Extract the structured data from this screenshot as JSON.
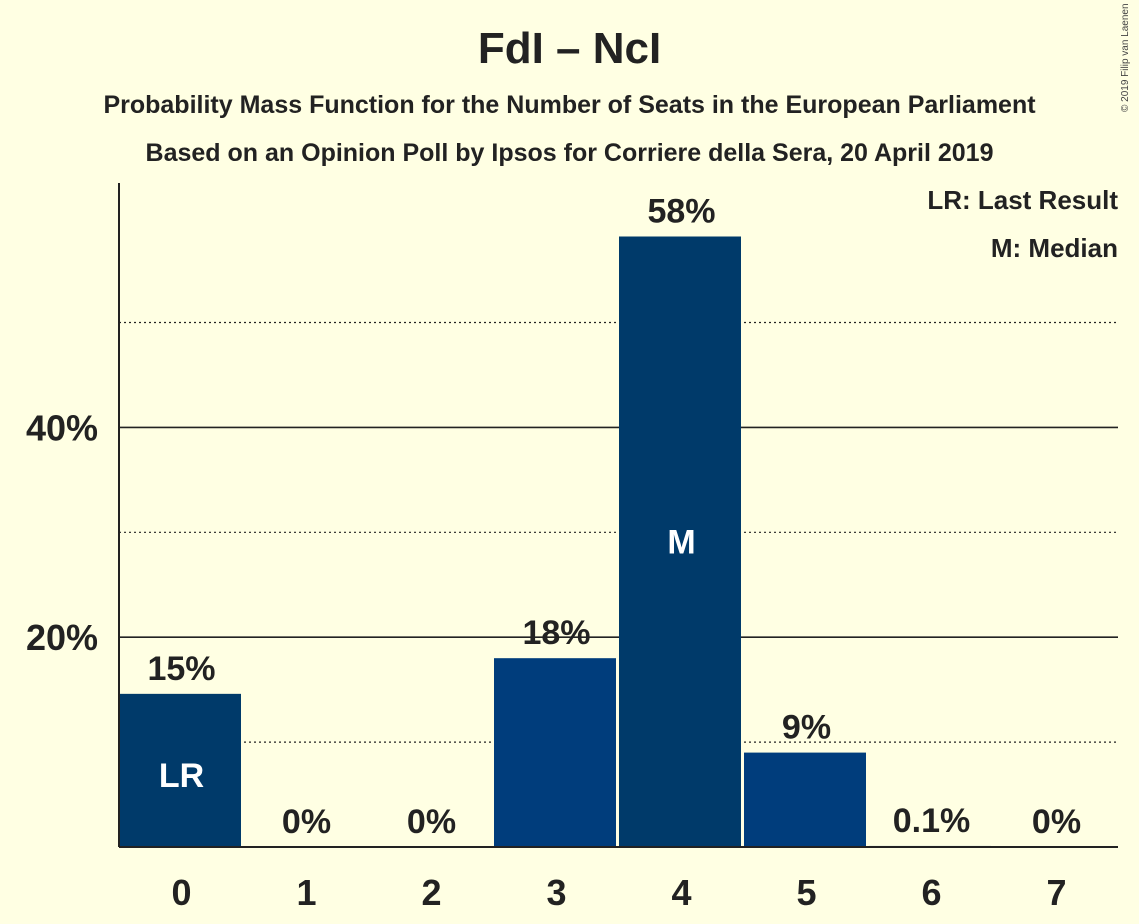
{
  "title": "FdI – NcI",
  "subtitle1": "Probability Mass Function for the Number of Seats in the European Parliament",
  "subtitle2": "Based on an Opinion Poll by Ipsos for Corriere della Sera, 20 April 2019",
  "legend": {
    "last_result": "LR: Last Result",
    "median": "M: Median"
  },
  "copyright": "© 2019 Filip van Laenen",
  "colors": {
    "background": "#ffffe3",
    "bar_dark": "#003a6a",
    "bar_light": "#003d7c",
    "text": "#222222",
    "bar_label": "#ffffff"
  },
  "chart_data": {
    "type": "bar",
    "categories": [
      "0",
      "1",
      "2",
      "3",
      "4",
      "5",
      "6",
      "7"
    ],
    "values": [
      14.6,
      0,
      0,
      18,
      58.2,
      9,
      0.1,
      0
    ],
    "value_labels": [
      "15%",
      "0%",
      "0%",
      "18%",
      "58%",
      "9%",
      "0.1%",
      "0%"
    ],
    "bar_markers": [
      "LR",
      "",
      "",
      "",
      "M",
      "",
      "",
      ""
    ],
    "ylim": [
      0,
      63.3
    ],
    "yticks": [
      20,
      40
    ],
    "ytick_labels": [
      "20%",
      "40%"
    ],
    "minor_gridlines": [
      10,
      30,
      50
    ],
    "xlabel": "",
    "ylabel": "",
    "grid": true
  }
}
